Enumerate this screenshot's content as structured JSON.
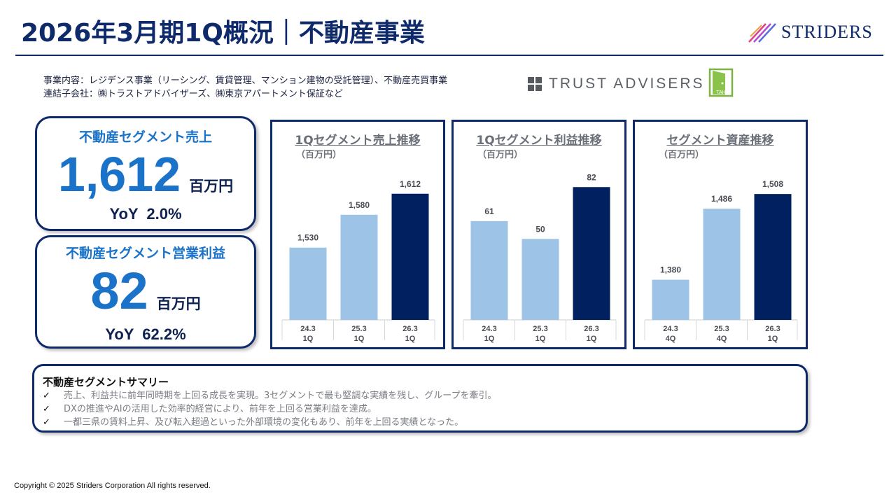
{
  "header": {
    "title": "2026年3月期1Q概況｜不動産事業",
    "logo_text": "STRIDERS"
  },
  "description": {
    "line1": "事業内容：レジデンス事業（リーシング、賃貸管理、マンション建物の受託管理）、不動産売買事業",
    "line2": "連結子会社：㈱トラストアドバイザーズ、㈱東京アパートメント保証など"
  },
  "partner_logos": {
    "trust_advisers": "TRUST ADVISERS",
    "tah": "TAH"
  },
  "kpis": {
    "sales": {
      "label": "不動産セグメント売上",
      "value": "1,612",
      "unit": "百万円",
      "yoy": "YoY  2.0%"
    },
    "profit": {
      "label": "不動産セグメント営業利益",
      "value": "82",
      "unit": "百万円",
      "yoy": "YoY  62.2%"
    }
  },
  "colors": {
    "navy": "#0f2a6b",
    "bar_light": "#9dc3e6",
    "bar_dark": "#002060",
    "accent_blue": "#1a73c8"
  },
  "chart_data": [
    {
      "type": "bar",
      "title": "1Qセグメント売上推移",
      "unit": "（百万円）",
      "categories": [
        "24.3\n1Q",
        "25.3\n1Q",
        "26.3\n1Q"
      ],
      "values": [
        1530,
        1580,
        1612
      ],
      "value_labels": [
        "1,530",
        "1,580",
        "1,612"
      ],
      "ylim": [
        1420,
        1632
      ],
      "highlight_last": true
    },
    {
      "type": "bar",
      "title": "1Qセグメント利益推移",
      "unit": "（百万円）",
      "categories": [
        "24.3\n1Q",
        "25.3\n1Q",
        "26.3\n1Q"
      ],
      "values": [
        61,
        50,
        82
      ],
      "value_labels": [
        "61",
        "50",
        "82"
      ],
      "ylim": [
        0,
        86
      ],
      "highlight_last": true
    },
    {
      "type": "bar",
      "title": "セグメント資産推移",
      "unit": "（百万円）",
      "categories": [
        "24.3\n4Q",
        "25.3\n4Q",
        "26.3\n1Q"
      ],
      "values": [
        1380,
        1486,
        1508
      ],
      "value_labels": [
        "1,380",
        "1,486",
        "1,508"
      ],
      "ylim": [
        1320,
        1528
      ],
      "highlight_last": true
    }
  ],
  "summary": {
    "title": "不動産セグメントサマリー",
    "items": [
      "売上、利益共に前年同時期を上回る成長を実現。3セグメントで最も堅調な実績を残し、グループを牽引。",
      "DXの推進やAIの活用した効率的経営により、前年を上回る営業利益を達成。",
      "一都三県の賃料上昇、及び転入超過といった外部環境の変化もあり、前年を上回る実績となった。"
    ],
    "check_symbol": "✓"
  },
  "footer": {
    "copyright": "Copyright © 2025 Striders Corporation All rights reserved."
  }
}
